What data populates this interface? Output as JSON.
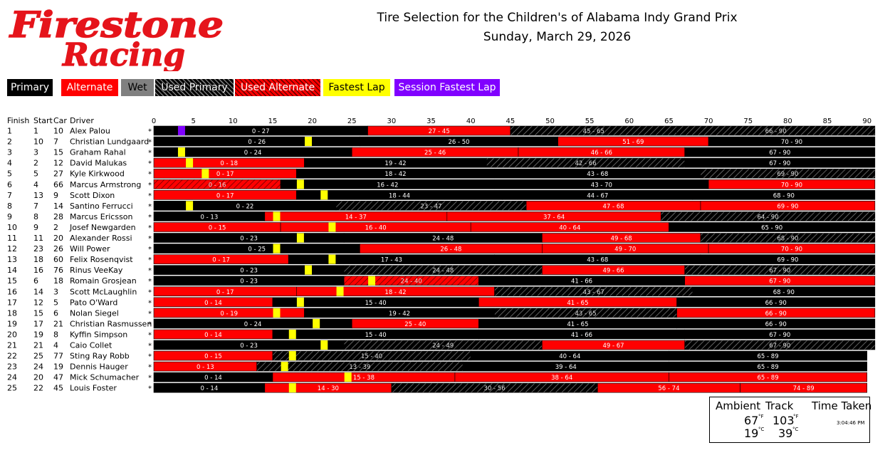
{
  "brand": {
    "line1": "Firestone",
    "line2": "Racing"
  },
  "title": {
    "line1": "Tire Selection for the Children's of Alabama Indy Grand Prix",
    "line2": "Sunday, March 29, 2026"
  },
  "legend": [
    {
      "key": "primary",
      "label": "Primary",
      "bg": "#000000",
      "fg": "#ffffff"
    },
    {
      "key": "alternate",
      "label": "Alternate",
      "bg": "#ff0000",
      "fg": "#ffffff"
    },
    {
      "key": "wet",
      "label": "Wet",
      "bg": "#808080",
      "fg": "#000000"
    },
    {
      "key": "used_primary",
      "label": "Used Primary",
      "bg": "#000000",
      "fg": "#ffffff",
      "hatched": true
    },
    {
      "key": "used_alternate",
      "label": "Used Alternate",
      "bg": "#ff0000",
      "fg": "#ffffff",
      "hatched": true
    },
    {
      "key": "fastest_lap",
      "label": "Fastest Lap",
      "bg": "#ffff00",
      "fg": "#000000"
    },
    {
      "key": "session_fastest_lap",
      "label": "Session Fastest Lap",
      "bg": "#8000ff",
      "fg": "#ffffff"
    }
  ],
  "weather": {
    "ambient_label": "Ambient",
    "track_label": "Track",
    "time_label": "Time Taken",
    "ambient_f": "67",
    "ambient_c": "19",
    "track_f": "103",
    "track_c": "39",
    "unit_f": "°F",
    "unit_c": "°C",
    "time": "3:04:46 PM"
  },
  "chart_data": {
    "type": "bar",
    "orientation": "horizontal-stacked-timeline",
    "columns": {
      "finish": "Finish",
      "start": "Start",
      "car": "Car",
      "driver": "Driver"
    },
    "x_ticks": [
      0,
      5,
      10,
      15,
      20,
      25,
      30,
      35,
      40,
      45,
      50,
      55,
      60,
      65,
      70,
      75,
      80,
      85,
      90
    ],
    "xlim": [
      0,
      90
    ],
    "compound_colors": {
      "P": "#000000",
      "A": "#ff0000",
      "UP": "#000000",
      "UA": "#ff0000",
      "W": "#808080"
    },
    "rows": [
      {
        "finish": "1",
        "start": "1",
        "car": "10",
        "driver": "Alex Palou",
        "mark": "*",
        "stints": [
          {
            "from": 0,
            "to": 27,
            "label": "0 - 27",
            "type": "P"
          },
          {
            "from": 27,
            "to": 45,
            "label": "27 - 45",
            "type": "A"
          },
          {
            "from": 45,
            "to": 66,
            "label": "45 - 65",
            "type": "UP"
          },
          {
            "from": 66,
            "to": 91,
            "label": "66 - 90",
            "type": "UP"
          }
        ],
        "fastest_lap": 3.5,
        "session_fastest": true
      },
      {
        "finish": "2",
        "start": "10",
        "car": "7",
        "driver": "Christian Lundgaard",
        "mark": "*",
        "stints": [
          {
            "from": 0,
            "to": 26,
            "label": "0 - 26",
            "type": "P"
          },
          {
            "from": 26,
            "to": 51,
            "label": "26 - 50",
            "type": "P"
          },
          {
            "from": 51,
            "to": 70,
            "label": "51 - 69",
            "type": "A"
          },
          {
            "from": 70,
            "to": 91,
            "label": "70 - 90",
            "type": "P"
          }
        ],
        "fastest_lap": 19.5
      },
      {
        "finish": "3",
        "start": "3",
        "car": "15",
        "driver": "Graham Rahal",
        "mark": "*",
        "stints": [
          {
            "from": 0,
            "to": 25,
            "label": "0 - 24",
            "type": "P"
          },
          {
            "from": 25,
            "to": 46,
            "label": "25 - 46",
            "type": "A"
          },
          {
            "from": 46,
            "to": 67,
            "label": "46 - 66",
            "type": "A"
          },
          {
            "from": 67,
            "to": 91,
            "label": "67 - 90",
            "type": "P"
          }
        ],
        "fastest_lap": 3.5
      },
      {
        "finish": "4",
        "start": "2",
        "car": "12",
        "driver": "David Malukas",
        "mark": "*",
        "stints": [
          {
            "from": 0,
            "to": 19,
            "label": "0 - 18",
            "type": "A"
          },
          {
            "from": 19,
            "to": 42,
            "label": "19 - 42",
            "type": "P"
          },
          {
            "from": 42,
            "to": 67,
            "label": "42 - 66",
            "type": "UP"
          },
          {
            "from": 67,
            "to": 91,
            "label": "67 - 90",
            "type": "P"
          }
        ],
        "fastest_lap": 4.5
      },
      {
        "finish": "5",
        "start": "5",
        "car": "27",
        "driver": "Kyle Kirkwood",
        "mark": "*",
        "stints": [
          {
            "from": 0,
            "to": 18,
            "label": "0 - 17",
            "type": "A"
          },
          {
            "from": 18,
            "to": 43,
            "label": "18 - 42",
            "type": "P"
          },
          {
            "from": 43,
            "to": 69,
            "label": "43 - 68",
            "type": "P"
          },
          {
            "from": 69,
            "to": 91,
            "label": "69 - 90",
            "type": "UP"
          }
        ],
        "fastest_lap": 6.5
      },
      {
        "finish": "6",
        "start": "4",
        "car": "66",
        "driver": "Marcus Armstrong",
        "mark": "*",
        "stints": [
          {
            "from": 0,
            "to": 16,
            "label": "0 - 16",
            "type": "UA"
          },
          {
            "from": 16,
            "to": 43,
            "label": "16 - 42",
            "type": "P"
          },
          {
            "from": 43,
            "to": 70,
            "label": "43 - 70",
            "type": "P"
          },
          {
            "from": 70,
            "to": 91,
            "label": "70 - 90",
            "type": "A"
          }
        ],
        "fastest_lap": 18.5
      },
      {
        "finish": "7",
        "start": "13",
        "car": "9",
        "driver": "Scott Dixon",
        "mark": "*",
        "stints": [
          {
            "from": 0,
            "to": 18,
            "label": "0 - 17",
            "type": "A"
          },
          {
            "from": 18,
            "to": 44,
            "label": "18 - 44",
            "type": "P"
          },
          {
            "from": 44,
            "to": 68,
            "label": "44 - 67",
            "type": "P"
          },
          {
            "from": 68,
            "to": 91,
            "label": "68 - 90",
            "type": "P"
          }
        ],
        "fastest_lap": 21.5
      },
      {
        "finish": "8",
        "start": "7",
        "car": "14",
        "driver": "Santino Ferrucci",
        "mark": "*",
        "stints": [
          {
            "from": 0,
            "to": 23,
            "label": "0 - 22",
            "type": "P"
          },
          {
            "from": 23,
            "to": 47,
            "label": "23 - 47",
            "type": "UP"
          },
          {
            "from": 47,
            "to": 69,
            "label": "47 - 68",
            "type": "A"
          },
          {
            "from": 69,
            "to": 91,
            "label": "69 - 90",
            "type": "A"
          }
        ],
        "fastest_lap": 4.5
      },
      {
        "finish": "9",
        "start": "8",
        "car": "28",
        "driver": "Marcus Ericsson",
        "mark": "*",
        "stints": [
          {
            "from": 0,
            "to": 14,
            "label": "0 - 13",
            "type": "P"
          },
          {
            "from": 14,
            "to": 37,
            "label": "14 - 37",
            "type": "A"
          },
          {
            "from": 37,
            "to": 64,
            "label": "37 - 64",
            "type": "A"
          },
          {
            "from": 64,
            "to": 91,
            "label": "64 - 90",
            "type": "UP"
          }
        ],
        "fastest_lap": 15.5
      },
      {
        "finish": "10",
        "start": "9",
        "car": "2",
        "driver": "Josef Newgarden",
        "mark": "*",
        "stints": [
          {
            "from": 0,
            "to": 16,
            "label": "0 - 15",
            "type": "A"
          },
          {
            "from": 16,
            "to": 40,
            "label": "16 - 40",
            "type": "A"
          },
          {
            "from": 40,
            "to": 65,
            "label": "40 - 64",
            "type": "A"
          },
          {
            "from": 65,
            "to": 91,
            "label": "65 - 90",
            "type": "P"
          }
        ],
        "fastest_lap": 22.5
      },
      {
        "finish": "11",
        "start": "11",
        "car": "20",
        "driver": "Alexander Rossi",
        "mark": "*",
        "stints": [
          {
            "from": 0,
            "to": 24,
            "label": "0 - 23",
            "type": "P"
          },
          {
            "from": 24,
            "to": 49,
            "label": "24 - 48",
            "type": "P"
          },
          {
            "from": 49,
            "to": 69,
            "label": "49 - 68",
            "type": "A"
          },
          {
            "from": 69,
            "to": 91,
            "label": "68 - 90",
            "type": "UP"
          }
        ],
        "fastest_lap": 18.5
      },
      {
        "finish": "12",
        "start": "23",
        "car": "26",
        "driver": "Will Power",
        "mark": "*",
        "stints": [
          {
            "from": 0,
            "to": 26,
            "label": "0 - 25",
            "type": "P"
          },
          {
            "from": 26,
            "to": 49,
            "label": "26 - 48",
            "type": "A"
          },
          {
            "from": 49,
            "to": 70,
            "label": "49 - 70",
            "type": "A"
          },
          {
            "from": 70,
            "to": 91,
            "label": "70 - 90",
            "type": "A"
          }
        ],
        "fastest_lap": 15.5
      },
      {
        "finish": "13",
        "start": "18",
        "car": "60",
        "driver": "Felix Rosenqvist",
        "mark": "*",
        "stints": [
          {
            "from": 0,
            "to": 17,
            "label": "0 - 17",
            "type": "A"
          },
          {
            "from": 17,
            "to": 43,
            "label": "17 - 43",
            "type": "P"
          },
          {
            "from": 43,
            "to": 69,
            "label": "43 - 68",
            "type": "P"
          },
          {
            "from": 69,
            "to": 91,
            "label": "69 - 90",
            "type": "P"
          }
        ],
        "fastest_lap": 22.5
      },
      {
        "finish": "14",
        "start": "16",
        "car": "76",
        "driver": "Rinus VeeKay",
        "mark": "*",
        "stints": [
          {
            "from": 0,
            "to": 24,
            "label": "0 - 23",
            "type": "P"
          },
          {
            "from": 24,
            "to": 49,
            "label": "24 - 48",
            "type": "UP"
          },
          {
            "from": 49,
            "to": 67,
            "label": "49 - 66",
            "type": "A"
          },
          {
            "from": 67,
            "to": 91,
            "label": "67 - 90",
            "type": "UP"
          }
        ],
        "fastest_lap": 19.5
      },
      {
        "finish": "15",
        "start": "6",
        "car": "18",
        "driver": "Romain Grosjean",
        "mark": "*",
        "stints": [
          {
            "from": 0,
            "to": 24,
            "label": "0 - 23",
            "type": "P"
          },
          {
            "from": 24,
            "to": 41,
            "label": "24 - 40",
            "type": "UA"
          },
          {
            "from": 41,
            "to": 67,
            "label": "41 - 66",
            "type": "P"
          },
          {
            "from": 67,
            "to": 91,
            "label": "67 - 90",
            "type": "A"
          }
        ],
        "fastest_lap": 27.5
      },
      {
        "finish": "16",
        "start": "14",
        "car": "3",
        "driver": "Scott McLaughlin",
        "mark": "*",
        "stints": [
          {
            "from": 0,
            "to": 18,
            "label": "0 - 17",
            "type": "A"
          },
          {
            "from": 18,
            "to": 43,
            "label": "18 - 42",
            "type": "A"
          },
          {
            "from": 43,
            "to": 68,
            "label": "43 - 67",
            "type": "UP"
          },
          {
            "from": 68,
            "to": 91,
            "label": "68 - 90",
            "type": "P"
          }
        ],
        "fastest_lap": 23.5
      },
      {
        "finish": "17",
        "start": "12",
        "car": "5",
        "driver": "Pato O'Ward",
        "mark": "*",
        "stints": [
          {
            "from": 0,
            "to": 15,
            "label": "0 - 14",
            "type": "A"
          },
          {
            "from": 15,
            "to": 41,
            "label": "15 - 40",
            "type": "P"
          },
          {
            "from": 41,
            "to": 66,
            "label": "41 - 65",
            "type": "A"
          },
          {
            "from": 66,
            "to": 91,
            "label": "66 - 90",
            "type": "P"
          }
        ],
        "fastest_lap": 18.5
      },
      {
        "finish": "18",
        "start": "15",
        "car": "6",
        "driver": "Nolan Siegel",
        "mark": "*",
        "stints": [
          {
            "from": 0,
            "to": 19,
            "label": "0 - 19",
            "type": "A"
          },
          {
            "from": 19,
            "to": 43,
            "label": "19 - 42",
            "type": "P"
          },
          {
            "from": 43,
            "to": 66,
            "label": "43 - 65",
            "type": "UP"
          },
          {
            "from": 66,
            "to": 91,
            "label": "66 - 90",
            "type": "A"
          }
        ],
        "fastest_lap": 15.5
      },
      {
        "finish": "19",
        "start": "17",
        "car": "21",
        "driver": "Christian Rasmussen",
        "mark": "*",
        "stints": [
          {
            "from": 0,
            "to": 25,
            "label": "0 - 24",
            "type": "P"
          },
          {
            "from": 25,
            "to": 41,
            "label": "25 - 40",
            "type": "A"
          },
          {
            "from": 41,
            "to": 66,
            "label": "41 - 65",
            "type": "P"
          },
          {
            "from": 66,
            "to": 91,
            "label": "66 - 90",
            "type": "P"
          }
        ],
        "fastest_lap": 20.5
      },
      {
        "finish": "20",
        "start": "19",
        "car": "8",
        "driver": "Kyffin Simpson",
        "mark": "*",
        "stints": [
          {
            "from": 0,
            "to": 15,
            "label": "0 - 14",
            "type": "A"
          },
          {
            "from": 15,
            "to": 41,
            "label": "15 - 40",
            "type": "P"
          },
          {
            "from": 41,
            "to": 67,
            "label": "41 - 66",
            "type": "P"
          },
          {
            "from": 67,
            "to": 91,
            "label": "67 - 90",
            "type": "P"
          }
        ],
        "fastest_lap": 17.5
      },
      {
        "finish": "21",
        "start": "21",
        "car": "4",
        "driver": "Caio Collet",
        "mark": "*",
        "stints": [
          {
            "from": 0,
            "to": 24,
            "label": "0 - 23",
            "type": "P"
          },
          {
            "from": 24,
            "to": 49,
            "label": "24 - 49",
            "type": "UP"
          },
          {
            "from": 49,
            "to": 67,
            "label": "49 - 67",
            "type": "A"
          },
          {
            "from": 67,
            "to": 91,
            "label": "67 - 90",
            "type": "UP"
          }
        ],
        "fastest_lap": 21.5
      },
      {
        "finish": "22",
        "start": "25",
        "car": "77",
        "driver": "Sting Ray Robb",
        "mark": "*",
        "stints": [
          {
            "from": 0,
            "to": 15,
            "label": "0 - 15",
            "type": "A"
          },
          {
            "from": 15,
            "to": 40,
            "label": "15 - 40",
            "type": "UP"
          },
          {
            "from": 40,
            "to": 65,
            "label": "40 - 64",
            "type": "P"
          },
          {
            "from": 65,
            "to": 90,
            "label": "65 - 89",
            "type": "P"
          }
        ],
        "fastest_lap": 17.5
      },
      {
        "finish": "23",
        "start": "24",
        "car": "19",
        "driver": "Dennis Hauger",
        "mark": "*",
        "stints": [
          {
            "from": 0,
            "to": 13,
            "label": "0 - 13",
            "type": "A"
          },
          {
            "from": 13,
            "to": 39,
            "label": "13 - 39",
            "type": "UP"
          },
          {
            "from": 39,
            "to": 65,
            "label": "39 - 64",
            "type": "P"
          },
          {
            "from": 65,
            "to": 90,
            "label": "65 - 89",
            "type": "P"
          }
        ],
        "fastest_lap": 16.5
      },
      {
        "finish": "24",
        "start": "20",
        "car": "47",
        "driver": "Mick Schumacher",
        "mark": "*",
        "stints": [
          {
            "from": 0,
            "to": 15,
            "label": "0 - 14",
            "type": "P"
          },
          {
            "from": 15,
            "to": 38,
            "label": "15 - 38",
            "type": "A"
          },
          {
            "from": 38,
            "to": 65,
            "label": "38 - 64",
            "type": "A"
          },
          {
            "from": 65,
            "to": 90,
            "label": "65 - 89",
            "type": "A"
          }
        ],
        "fastest_lap": 24.5
      },
      {
        "finish": "25",
        "start": "22",
        "car": "45",
        "driver": "Louis Foster",
        "mark": "*",
        "stints": [
          {
            "from": 0,
            "to": 14,
            "label": "0 - 14",
            "type": "P"
          },
          {
            "from": 14,
            "to": 30,
            "label": "14 - 30",
            "type": "A"
          },
          {
            "from": 30,
            "to": 56,
            "label": "30 - 56",
            "type": "UP"
          },
          {
            "from": 56,
            "to": 74,
            "label": "56 - 74",
            "type": "A"
          },
          {
            "from": 74,
            "to": 90,
            "label": "74 - 89",
            "type": "A"
          }
        ],
        "fastest_lap": 17.5
      }
    ]
  }
}
